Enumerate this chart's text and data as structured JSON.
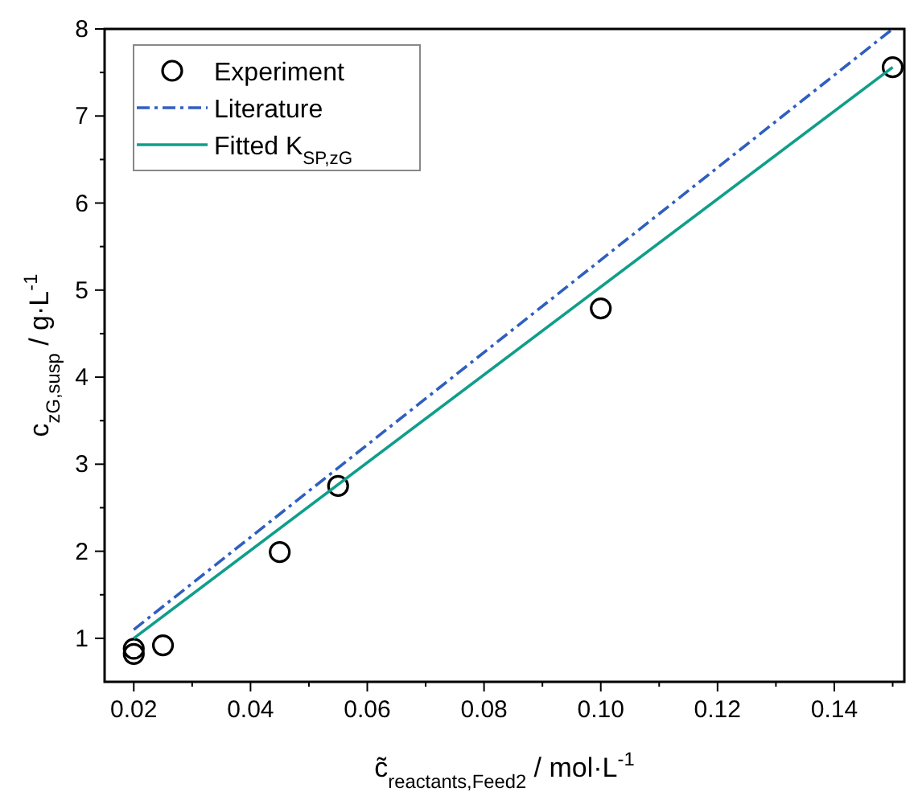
{
  "chart_data": {
    "type": "line",
    "xlabel": "c̃$_{reactants,Feed2}$ / mol·L$^{-1}$",
    "ylabel": "c$_{zG,susp}$ / g·L$^{-1}$",
    "xlim": [
      0.015,
      0.152
    ],
    "ylim": [
      0.5,
      8
    ],
    "xticks": [
      {
        "value": 0.02,
        "label": "0.02"
      },
      {
        "value": 0.03,
        "label": null
      },
      {
        "value": 0.04,
        "label": "0.04"
      },
      {
        "value": 0.05,
        "label": null
      },
      {
        "value": 0.06,
        "label": "0.06"
      },
      {
        "value": 0.07,
        "label": null
      },
      {
        "value": 0.08,
        "label": "0.08"
      },
      {
        "value": 0.09,
        "label": null
      },
      {
        "value": 0.1,
        "label": "0.10"
      },
      {
        "value": 0.11,
        "label": null
      },
      {
        "value": 0.12,
        "label": "0.12"
      },
      {
        "value": 0.13,
        "label": null
      },
      {
        "value": 0.14,
        "label": "0.14"
      },
      {
        "value": 0.15,
        "label": null
      }
    ],
    "yticks": [
      {
        "value": 1,
        "label": "1"
      },
      {
        "value": 1.5,
        "label": null
      },
      {
        "value": 2,
        "label": "2"
      },
      {
        "value": 2.5,
        "label": null
      },
      {
        "value": 3,
        "label": "3"
      },
      {
        "value": 3.5,
        "label": null
      },
      {
        "value": 4,
        "label": "4"
      },
      {
        "value": 4.5,
        "label": null
      },
      {
        "value": 5,
        "label": "5"
      },
      {
        "value": 5.5,
        "label": null
      },
      {
        "value": 6,
        "label": "6"
      },
      {
        "value": 6.5,
        "label": null
      },
      {
        "value": 7,
        "label": "7"
      },
      {
        "value": 7.5,
        "label": null
      },
      {
        "value": 8,
        "label": "8"
      }
    ],
    "grid": false,
    "legend": "top left",
    "series": [
      {
        "name": "Experiment",
        "type": "scatter",
        "marker": "circle",
        "color": "#000000",
        "x": [
          0.02,
          0.02,
          0.025,
          0.045,
          0.055,
          0.1,
          0.15
        ],
        "values": [
          0.82,
          0.88,
          0.92,
          1.99,
          2.75,
          4.79,
          7.56
        ]
      },
      {
        "name": "Literature",
        "line_style": "dashdot",
        "color": "#2f5fbf",
        "x": [
          0.02,
          0.15
        ],
        "values": [
          1.1,
          8.0
        ]
      },
      {
        "name": "Fitted K$_{SP,zG}$",
        "line_style": "solid",
        "color": "#0f9e8a",
        "x": [
          0.02,
          0.15
        ],
        "values": [
          1.0,
          7.56
        ]
      }
    ]
  }
}
